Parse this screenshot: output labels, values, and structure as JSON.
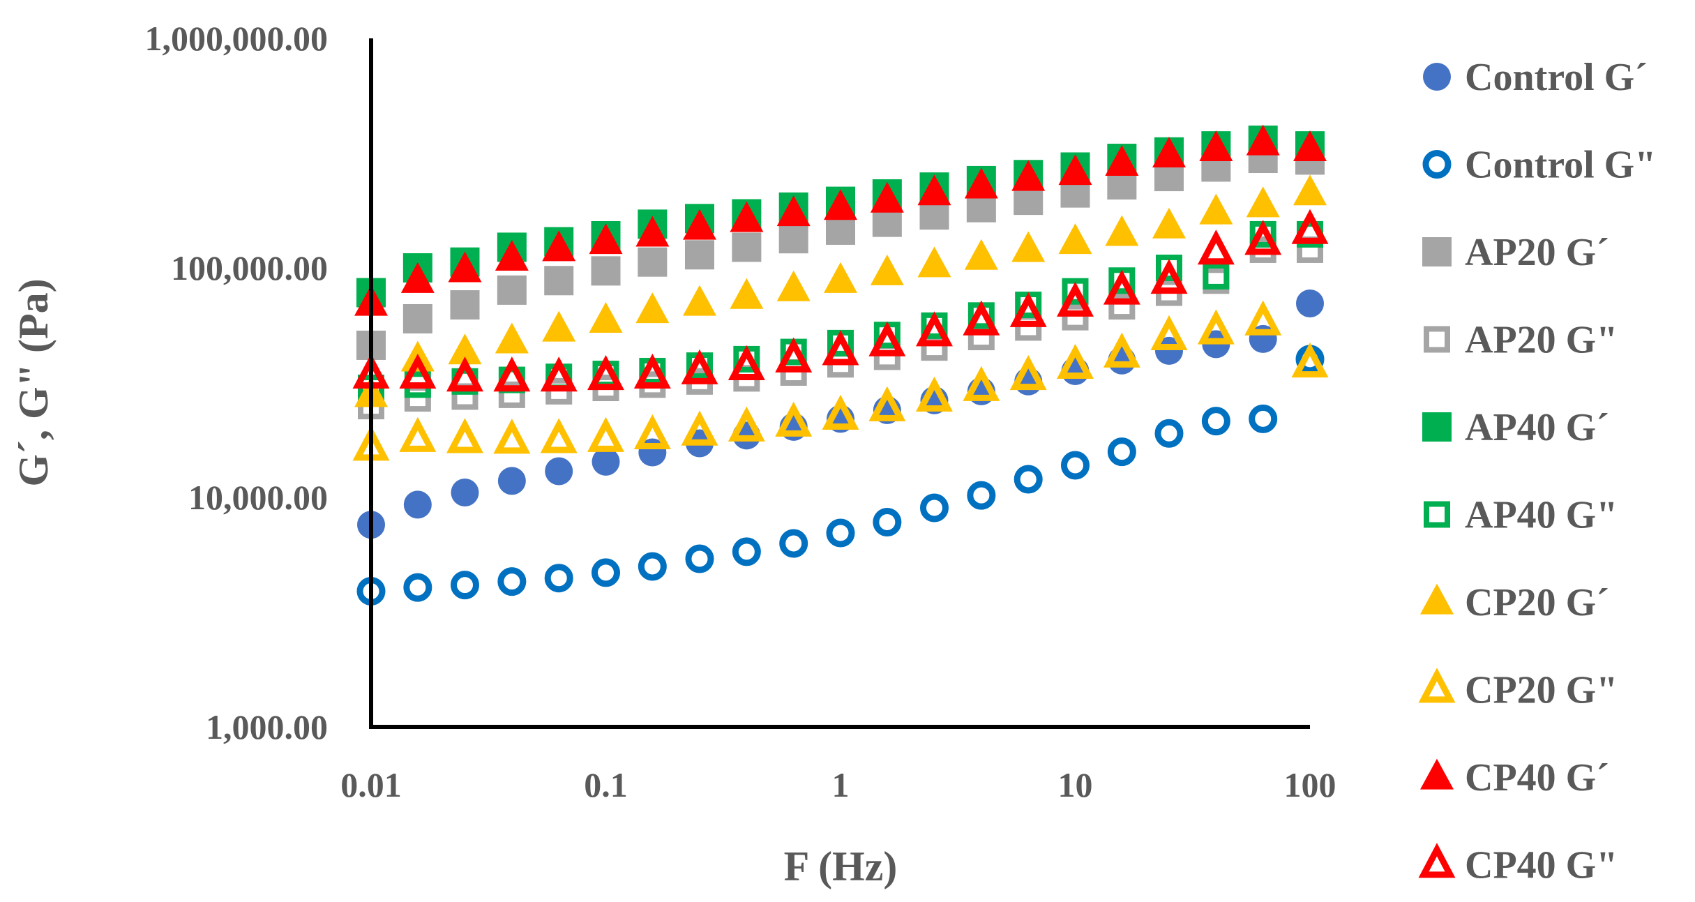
{
  "chart_data": {
    "type": "scatter",
    "title": "",
    "xlabel": "F (Hz)",
    "ylabel": "G´, G\" (Pa)",
    "x_scale": "log",
    "y_scale": "log",
    "xlim": [
      0.01,
      100
    ],
    "ylim": [
      1000,
      1000000
    ],
    "x_ticks": [
      0.01,
      0.1,
      1,
      10,
      100
    ],
    "x_tick_labels": [
      "0.01",
      "0.1",
      "1",
      "10",
      "100"
    ],
    "y_ticks": [
      1000,
      10000,
      100000,
      1000000
    ],
    "y_tick_labels": [
      "1,000.00",
      "10,000.00",
      "100,000.00",
      "1,000,000.00"
    ],
    "grid": false,
    "legend_position": "right",
    "x": [
      0.01,
      0.0158,
      0.0251,
      0.0398,
      0.0631,
      0.1,
      0.158,
      0.251,
      0.398,
      0.631,
      1,
      1.58,
      2.51,
      3.98,
      6.31,
      10,
      15.8,
      25.1,
      39.8,
      63.1,
      100
    ],
    "series": [
      {
        "name": "Control G´",
        "marker": "circle",
        "filled": true,
        "color": "#4472C4",
        "values": [
          7600,
          9300,
          10500,
          11800,
          13000,
          14300,
          15700,
          17200,
          18600,
          20300,
          22000,
          24000,
          26500,
          29000,
          32000,
          35500,
          39500,
          43500,
          46500,
          49000,
          70000
        ]
      },
      {
        "name": "Control G\"",
        "marker": "circle",
        "filled": false,
        "color": "#0070C0",
        "values": [
          3900,
          4050,
          4150,
          4300,
          4450,
          4700,
          5000,
          5400,
          5800,
          6300,
          7000,
          7800,
          9000,
          10200,
          12000,
          13800,
          15800,
          19000,
          21500,
          22000,
          40000
        ]
      },
      {
        "name": "AP20 G´",
        "marker": "square",
        "filled": true,
        "color": "#A5A5A5",
        "values": [
          46000,
          60000,
          69000,
          80000,
          88000,
          97000,
          106000,
          114000,
          123000,
          134000,
          146000,
          158000,
          170000,
          183000,
          197000,
          212000,
          230000,
          250000,
          275000,
          300000,
          295000
        ]
      },
      {
        "name": "AP20 G\"",
        "marker": "square",
        "filled": false,
        "color": "#A5A5A5",
        "values": [
          25000,
          27000,
          27500,
          28000,
          29000,
          30000,
          31000,
          32000,
          33000,
          35000,
          38000,
          41000,
          45000,
          50000,
          55000,
          61000,
          68000,
          78000,
          88000,
          120000,
          120000
        ]
      },
      {
        "name": "AP40 G´",
        "marker": "square",
        "filled": true,
        "color": "#00B050",
        "values": [
          78000,
          100000,
          106000,
          123000,
          130000,
          138000,
          155000,
          164000,
          172000,
          184000,
          195000,
          210000,
          225000,
          240000,
          255000,
          275000,
          300000,
          320000,
          340000,
          360000,
          340000
        ]
      },
      {
        "name": "AP40 G\"",
        "marker": "square",
        "filled": false,
        "color": "#00B050",
        "values": [
          30000,
          31000,
          32000,
          32500,
          33500,
          34500,
          35500,
          37500,
          40000,
          43000,
          47000,
          51000,
          56000,
          62000,
          69000,
          79000,
          88000,
          100000,
          92000,
          140000,
          140000
        ]
      },
      {
        "name": "CP20 G´",
        "marker": "triangle",
        "filled": true,
        "color": "#FFC000",
        "values": [
          28000,
          40000,
          43000,
          48000,
          54000,
          59000,
          65000,
          70000,
          75000,
          81000,
          88000,
          95000,
          103000,
          111000,
          120000,
          130000,
          141000,
          152000,
          175000,
          188000,
          212000
        ]
      },
      {
        "name": "CP20 G\"",
        "marker": "triangle",
        "filled": false,
        "color": "#FFC000",
        "values": [
          16500,
          18000,
          17800,
          17700,
          17800,
          18000,
          18500,
          19200,
          20000,
          21000,
          22500,
          24500,
          27000,
          30000,
          33500,
          37500,
          42000,
          50000,
          53000,
          58000,
          38000
        ]
      },
      {
        "name": "CP40 G´",
        "marker": "triangle",
        "filled": true,
        "color": "#FF0000",
        "values": [
          70000,
          88000,
          98000,
          110000,
          121000,
          130000,
          140000,
          150000,
          162000,
          172000,
          183000,
          197000,
          212000,
          227000,
          245000,
          260000,
          285000,
          310000,
          330000,
          350000,
          330000
        ]
      },
      {
        "name": "CP40 G\"",
        "marker": "triangle",
        "filled": false,
        "color": "#FF0000",
        "values": [
          34000,
          34000,
          33000,
          33000,
          33000,
          33500,
          34000,
          35500,
          37000,
          40000,
          43000,
          47000,
          52000,
          58000,
          63000,
          70000,
          79000,
          88000,
          118000,
          130000,
          145000
        ]
      }
    ]
  }
}
